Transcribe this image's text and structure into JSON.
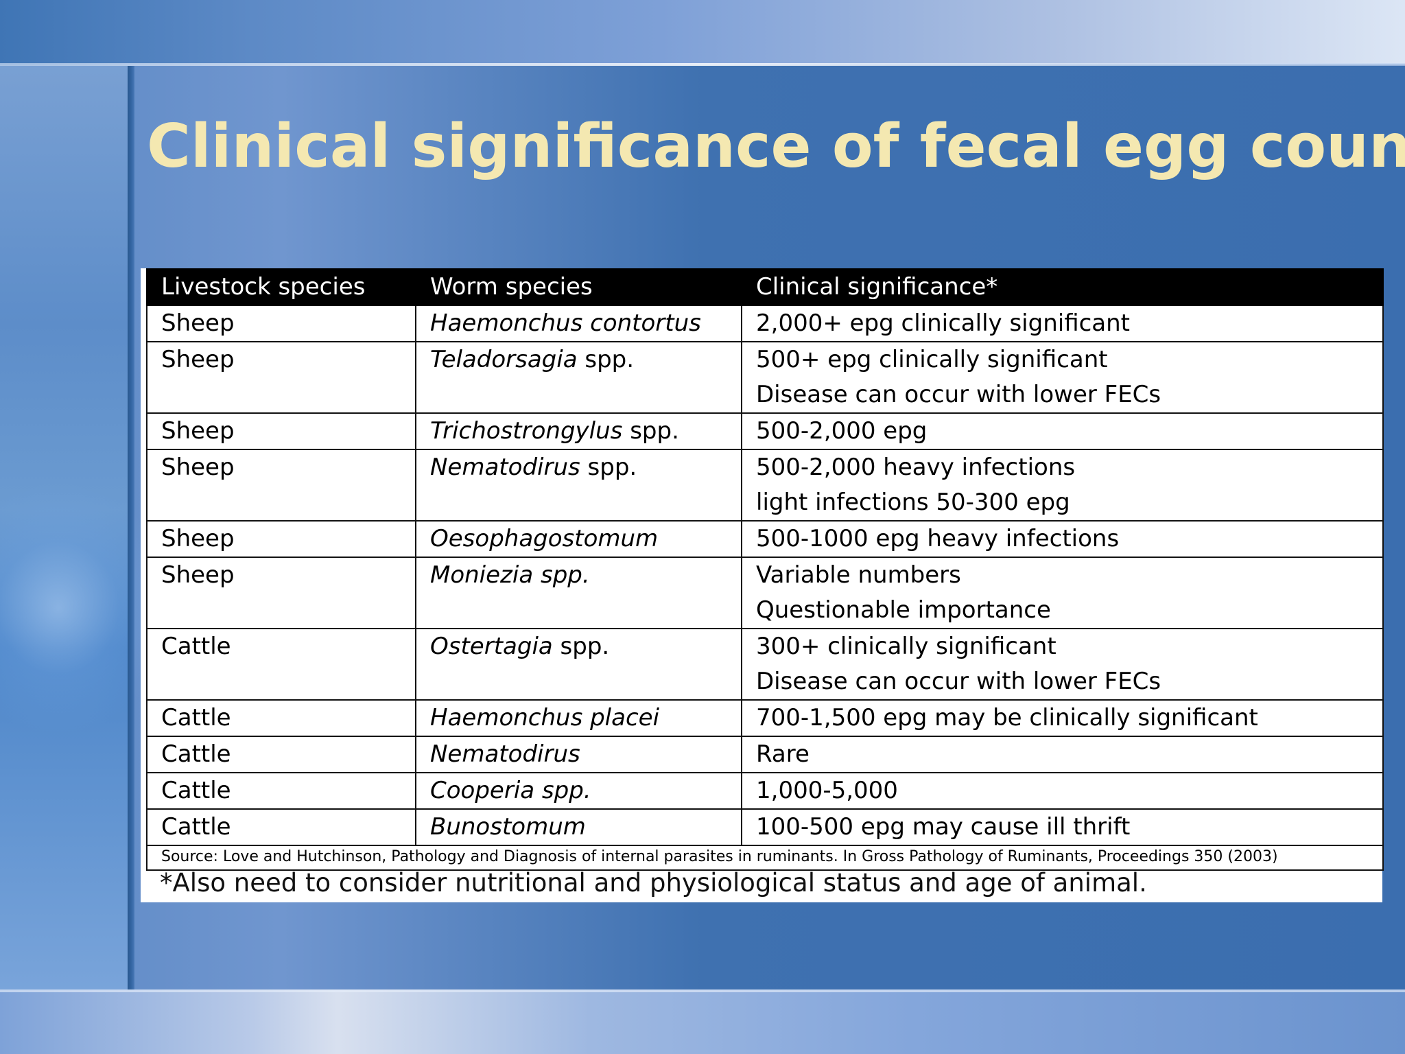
{
  "slide": {
    "title": "Clinical significance of fecal egg counts",
    "table": {
      "headers": [
        "Livestock species",
        "Worm species",
        "Clinical significance*"
      ],
      "rows": [
        {
          "livestock": "Sheep",
          "worm_italic": "Haemonchus contortus",
          "worm_suffix": "",
          "significance": [
            "2,000+ epg clinically significant"
          ]
        },
        {
          "livestock": "Sheep",
          "worm_italic": "Teladorsagia",
          "worm_suffix": " spp.",
          "significance": [
            "500+ epg clinically significant",
            "Disease can occur with lower FECs"
          ]
        },
        {
          "livestock": "Sheep",
          "worm_italic": "Trichostrongylus",
          "worm_suffix": " spp.",
          "significance": [
            "500-2,000 epg"
          ]
        },
        {
          "livestock": "Sheep",
          "worm_italic": "Nematodirus",
          "worm_suffix": " spp.",
          "significance": [
            "500-2,000 heavy infections",
            "light infections 50-300 epg"
          ]
        },
        {
          "livestock": "Sheep",
          "worm_italic": "Oesophagostomum",
          "worm_suffix": "",
          "significance": [
            "500-1000 epg heavy infections"
          ]
        },
        {
          "livestock": "Sheep",
          "worm_italic": "Moniezia spp.",
          "worm_suffix": "",
          "significance": [
            "Variable numbers",
            "Questionable importance"
          ]
        },
        {
          "livestock": "Cattle",
          "worm_italic": "Ostertagia",
          "worm_suffix": " spp.",
          "significance": [
            "300+ clinically significant",
            "Disease can occur with lower FECs"
          ]
        },
        {
          "livestock": "Cattle",
          "worm_italic": "Haemonchus placei",
          "worm_suffix": "",
          "significance": [
            "700-1,500 epg may be clinically significant"
          ]
        },
        {
          "livestock": "Cattle",
          "worm_italic": "Nematodirus",
          "worm_suffix": "",
          "significance": [
            "Rare"
          ]
        },
        {
          "livestock": "Cattle",
          "worm_italic": "Cooperia spp.",
          "worm_suffix": "",
          "significance": [
            "1,000-5,000"
          ]
        },
        {
          "livestock": "Cattle",
          "worm_italic": "Bunostomum",
          "worm_suffix": "",
          "significance": [
            "100-500 epg may cause ill thrift"
          ]
        }
      ],
      "source": "Source:  Love and Hutchinson, Pathology and Diagnosis of internal parasites in ruminants.  In Gross Pathology of Ruminants, Proceedings 350 (2003)"
    },
    "footnote": "*Also need to consider nutritional and physiological status and age of animal."
  }
}
